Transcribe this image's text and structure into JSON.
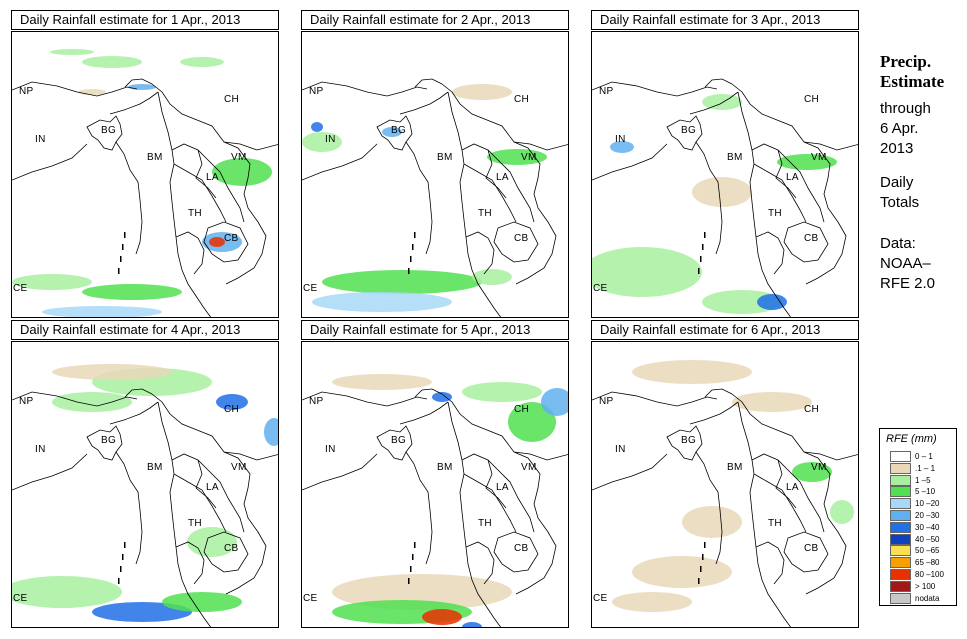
{
  "panels": [
    {
      "title": "Daily Rainfall estimate for  1 Apr., 2013"
    },
    {
      "title": "Daily Rainfall estimate for  2 Apr., 2013"
    },
    {
      "title": "Daily Rainfall estimate for  3 Apr., 2013"
    },
    {
      "title": "Daily Rainfall estimate for  4 Apr., 2013"
    },
    {
      "title": "Daily Rainfall estimate for  5 Apr., 2013"
    },
    {
      "title": "Daily Rainfall estimate for  6 Apr., 2013"
    }
  ],
  "country_labels": {
    "np": "NP",
    "ch": "CH",
    "in": "IN",
    "bg": "BG",
    "bm": "BM",
    "vm": "VM",
    "la": "LA",
    "th": "TH",
    "cb": "CB",
    "ce": "CE"
  },
  "side": {
    "title_line1": "Precip.",
    "title_line2": "Estimate",
    "through": "through",
    "date_line1": "6 Apr.",
    "date_line2": "2013",
    "daily": "Daily",
    "totals": "Totals",
    "data_label": "Data:",
    "source_line1": "NOAA–",
    "source_line2": "RFE 2.0"
  },
  "legend": {
    "title": "RFE (mm)",
    "items": [
      {
        "label": "0 – 1",
        "color": "#ffffff"
      },
      {
        "label": ".1 – 1",
        "color": "#e8d8b8"
      },
      {
        "label": "1 –5",
        "color": "#a8f0a0"
      },
      {
        "label": "5 –10",
        "color": "#50e050"
      },
      {
        "label": "10 –20",
        "color": "#a8d8f8"
      },
      {
        "label": "20 –30",
        "color": "#60b0f0"
      },
      {
        "label": "30 –40",
        "color": "#2070e8"
      },
      {
        "label": "40 –50",
        "color": "#1040c0"
      },
      {
        "label": "50 –65",
        "color": "#f8e050"
      },
      {
        "label": "65 –80",
        "color": "#f8a000"
      },
      {
        "label": "80 –100",
        "color": "#e83000"
      },
      {
        "label": "> 100",
        "color": "#a01818"
      },
      {
        "label": "nodata",
        "color": "#c8c8c8"
      }
    ]
  }
}
